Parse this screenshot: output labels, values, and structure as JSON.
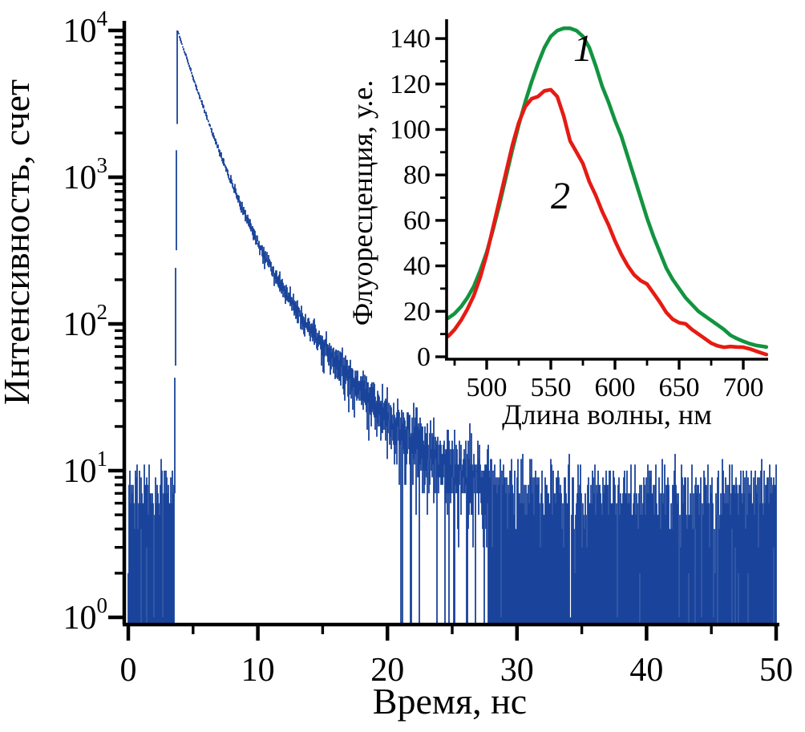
{
  "page": {
    "background": "#ffffff"
  },
  "chart_data": [
    {
      "id": "main-decay",
      "type": "line",
      "title": "",
      "xlabel": "Время, нс",
      "ylabel": "Интенсивность, счет",
      "xlim": [
        0,
        50
      ],
      "ylim": [
        1,
        10000
      ],
      "yscale": "log",
      "grid": false,
      "legend": "none",
      "y_tick_base": "10",
      "y_tick_exponents": [
        0,
        1,
        2,
        3,
        4
      ],
      "x_major_ticks": [
        0,
        10,
        20,
        30,
        40,
        50
      ],
      "x_tick_labels": [
        "0",
        "10",
        "20",
        "30",
        "40",
        "50"
      ],
      "x_minor_ticks": [
        5,
        15,
        25,
        35,
        45
      ],
      "series": [
        {
          "name": "fluorescence-decay-trace",
          "color": "#1A449B",
          "style": "noisy-counts-trace",
          "model": {
            "baseline": 5.5,
            "rise_start_ns": 3.55,
            "t0_ns": 3.8,
            "peak_counts": 10000,
            "components": [
              {
                "A": 9000,
                "tau_ns": 1.5
              },
              {
                "A": 1000,
                "tau_ns": 4.0
              }
            ]
          },
          "noise": {
            "type": "poisson",
            "seed": 42,
            "bins": 4000,
            "dropouts": [
              {
                "lambda_below": 8,
                "p": 0.5
              },
              {
                "lambda_below": 20,
                "p": 0.04
              }
            ]
          },
          "envelope_anchors": [
            [
              0,
              5.5
            ],
            [
              3.55,
              5.5
            ],
            [
              3.8,
              10000
            ],
            [
              5,
              4790
            ],
            [
              6,
              2655
            ],
            [
              8,
              903
            ],
            [
              10,
              362
            ],
            [
              12,
              172
            ],
            [
              14,
              94
            ],
            [
              16,
              55
            ],
            [
              18,
              35
            ],
            [
              20,
              23
            ],
            [
              22,
              16
            ],
            [
              24,
              12
            ],
            [
              26,
              9.6
            ],
            [
              28,
              8
            ],
            [
              32,
              6.5
            ],
            [
              36,
              5.9
            ],
            [
              40,
              5.6
            ],
            [
              45,
              5.5
            ],
            [
              50,
              5.5
            ]
          ]
        }
      ]
    },
    {
      "id": "inset-spectra",
      "type": "line",
      "title": "",
      "xlabel": "Длина волны, нм",
      "ylabel": "Флуоресценция, у.е.",
      "xlim": [
        469,
        718
      ],
      "ylim": [
        0,
        148
      ],
      "grid": false,
      "y_major_ticks": [
        0,
        20,
        40,
        60,
        80,
        100,
        120,
        140
      ],
      "y_tick_labels": [
        "0",
        "20",
        "40",
        "60",
        "80",
        "100",
        "120",
        "140"
      ],
      "y_minor_ticks": [
        10,
        30,
        50,
        70,
        90,
        110,
        130
      ],
      "x_major_ticks": [
        500,
        550,
        600,
        650,
        700
      ],
      "x_tick_labels": [
        "500",
        "550",
        "600",
        "650",
        "700"
      ],
      "x_minor_ticks": [
        475,
        525,
        575,
        625,
        675
      ],
      "series": [
        {
          "name": "1",
          "color": "#129440",
          "peak": {
            "wavelength_nm": 562,
            "value": 144.5
          },
          "x": [
            470,
            475,
            480,
            485,
            490,
            495,
            500,
            505,
            510,
            515,
            520,
            525,
            530,
            535,
            540,
            545,
            550,
            555,
            560,
            565,
            570,
            575,
            580,
            585,
            590,
            595,
            600,
            605,
            610,
            615,
            620,
            625,
            630,
            635,
            640,
            645,
            650,
            655,
            660,
            665,
            670,
            675,
            680,
            685,
            690,
            695,
            700,
            705,
            710,
            715,
            718
          ],
          "y": [
            17,
            19,
            22,
            26,
            31,
            38,
            46,
            56,
            67,
            79,
            91,
            102,
            112,
            121,
            129,
            136,
            141,
            143.5,
            144.5,
            144.5,
            143.5,
            141,
            136,
            128,
            119,
            112,
            104,
            97,
            88,
            79,
            70,
            61,
            53,
            46,
            39,
            34,
            30,
            26,
            23,
            20,
            18,
            16,
            14,
            12,
            9.5,
            8,
            6.8,
            5.8,
            5,
            4.6,
            4.3
          ]
        },
        {
          "name": "2",
          "color": "#E51B14",
          "peak": {
            "wavelength_nm": 550,
            "value": 117.5
          },
          "x": [
            470,
            475,
            480,
            485,
            490,
            495,
            500,
            505,
            510,
            515,
            520,
            525,
            530,
            535,
            540,
            545,
            550,
            555,
            560,
            565,
            570,
            575,
            580,
            585,
            590,
            595,
            600,
            605,
            610,
            615,
            620,
            625,
            630,
            635,
            640,
            645,
            650,
            655,
            660,
            665,
            670,
            675,
            680,
            685,
            690,
            695,
            700,
            705,
            710,
            715,
            718
          ],
          "y": [
            9,
            12,
            16,
            21,
            27,
            35,
            45,
            57,
            69,
            81,
            93,
            103,
            110,
            113.5,
            114.5,
            117,
            117.5,
            114.5,
            106,
            95,
            90,
            85,
            77,
            71,
            64,
            58,
            51,
            45,
            40,
            36,
            33.5,
            32,
            28,
            24,
            19.5,
            16.5,
            15,
            14.5,
            12,
            10,
            8,
            6,
            4.8,
            4.2,
            4.5,
            4.3,
            4.2,
            3.5,
            2.5,
            1.5,
            1
          ]
        }
      ]
    }
  ]
}
